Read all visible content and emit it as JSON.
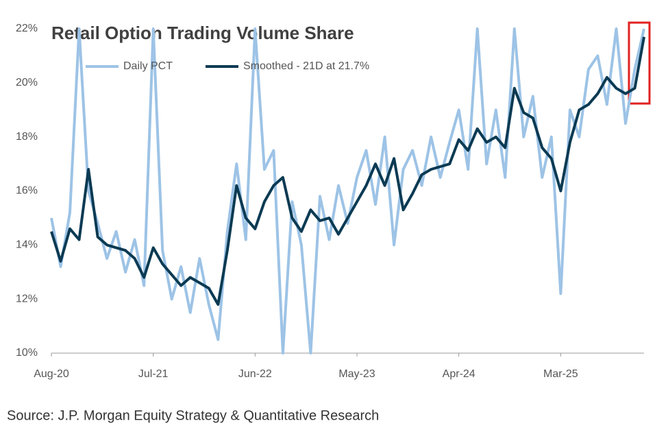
{
  "chart_data": {
    "type": "line",
    "title": "Retail Option Trading Volume Share",
    "source": "Source: J.P. Morgan Equity Strategy & Quantitative Research",
    "categories": [
      "Aug-20",
      null,
      null,
      null,
      null,
      null,
      null,
      null,
      null,
      null,
      null,
      "Jul-21",
      null,
      null,
      null,
      null,
      null,
      null,
      null,
      null,
      null,
      null,
      "Jun-22",
      null,
      null,
      null,
      null,
      null,
      null,
      null,
      null,
      null,
      null,
      "May-23",
      null,
      null,
      null,
      null,
      null,
      null,
      null,
      null,
      null,
      null,
      "Apr-24",
      null,
      null,
      null,
      null,
      null,
      null,
      null,
      null,
      null,
      null,
      "Mar-25",
      null,
      null,
      null,
      null,
      null,
      null,
      null,
      null,
      null
    ],
    "series": [
      {
        "name": "Daily PCT",
        "color": "#9dc3e6",
        "values": [
          15.0,
          13.2,
          15.2,
          22.0,
          16.0,
          14.8,
          13.5,
          14.5,
          13.0,
          14.2,
          12.5,
          22.0,
          13.8,
          12.0,
          13.2,
          11.5,
          13.5,
          11.8,
          10.5,
          14.5,
          17.0,
          14.2,
          22.0,
          16.8,
          17.5,
          10.0,
          15.6,
          14.0,
          10.0,
          15.8,
          14.2,
          16.2,
          14.8,
          16.5,
          17.5,
          15.5,
          18.0,
          14.0,
          16.8,
          17.5,
          16.2,
          18.0,
          16.5,
          17.8,
          19.0,
          16.8,
          22.0,
          17.0,
          19.0,
          16.5,
          22.0,
          18.0,
          19.5,
          16.5,
          18.0,
          12.2,
          19.0,
          18.0,
          20.5,
          21.0,
          19.2,
          22.0,
          18.5,
          20.5,
          22.0
        ]
      },
      {
        "name": "Smoothed - 21D at 21.7%",
        "color": "#0b3a53",
        "values": [
          14.5,
          13.4,
          14.6,
          14.2,
          16.8,
          14.3,
          14.0,
          13.9,
          13.8,
          13.5,
          12.8,
          13.9,
          13.3,
          12.9,
          12.5,
          12.8,
          12.6,
          12.4,
          11.8,
          13.8,
          16.2,
          15.0,
          14.6,
          15.6,
          16.2,
          16.5,
          15.0,
          14.5,
          15.3,
          14.9,
          15.0,
          14.4,
          15.0,
          15.6,
          16.2,
          17.0,
          16.2,
          17.2,
          15.3,
          15.9,
          16.6,
          16.8,
          16.9,
          17.0,
          17.9,
          17.5,
          18.3,
          17.8,
          18.0,
          17.6,
          19.8,
          18.9,
          18.7,
          17.6,
          17.2,
          16.0,
          17.8,
          19.0,
          19.2,
          19.6,
          20.2,
          19.8,
          19.6,
          19.8,
          21.7
        ]
      }
    ],
    "ylim": [
      10,
      22
    ],
    "yticks": [
      {
        "value": 10,
        "label": "10%"
      },
      {
        "value": 12,
        "label": "12%"
      },
      {
        "value": 14,
        "label": "14%"
      },
      {
        "value": 16,
        "label": "16%"
      },
      {
        "value": 18,
        "label": "18%"
      },
      {
        "value": 20,
        "label": "20%"
      },
      {
        "value": 22,
        "label": "22%"
      }
    ],
    "grid": false
  }
}
